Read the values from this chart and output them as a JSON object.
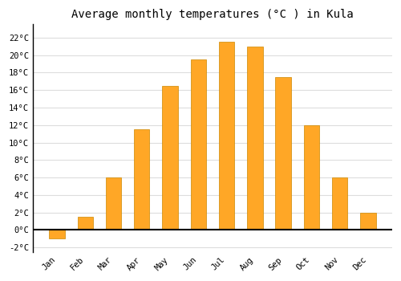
{
  "months": [
    "Jan",
    "Feb",
    "Mar",
    "Apr",
    "May",
    "Jun",
    "Jul",
    "Aug",
    "Sep",
    "Oct",
    "Nov",
    "Dec"
  ],
  "temperatures": [
    -1,
    1.5,
    6,
    11.5,
    16.5,
    19.5,
    21.5,
    21,
    17.5,
    12,
    6,
    2
  ],
  "bar_color": "#FFA726",
  "bar_edge_color": "#CC8800",
  "title": "Average monthly temperatures (°C ) in Kula",
  "title_fontsize": 10,
  "ylim": [
    -2.5,
    23.5
  ],
  "yticks": [
    -2,
    0,
    2,
    4,
    6,
    8,
    10,
    12,
    14,
    16,
    18,
    20,
    22
  ],
  "ytick_labels": [
    "-2°C",
    "0°C",
    "2°C",
    "4°C",
    "6°C",
    "8°C",
    "10°C",
    "12°C",
    "14°C",
    "16°C",
    "18°C",
    "20°C",
    "22°C"
  ],
  "background_color": "#ffffff",
  "plot_bg_color": "#ffffff",
  "grid_color": "#dddddd",
  "zero_line_color": "#000000",
  "bar_width": 0.55
}
